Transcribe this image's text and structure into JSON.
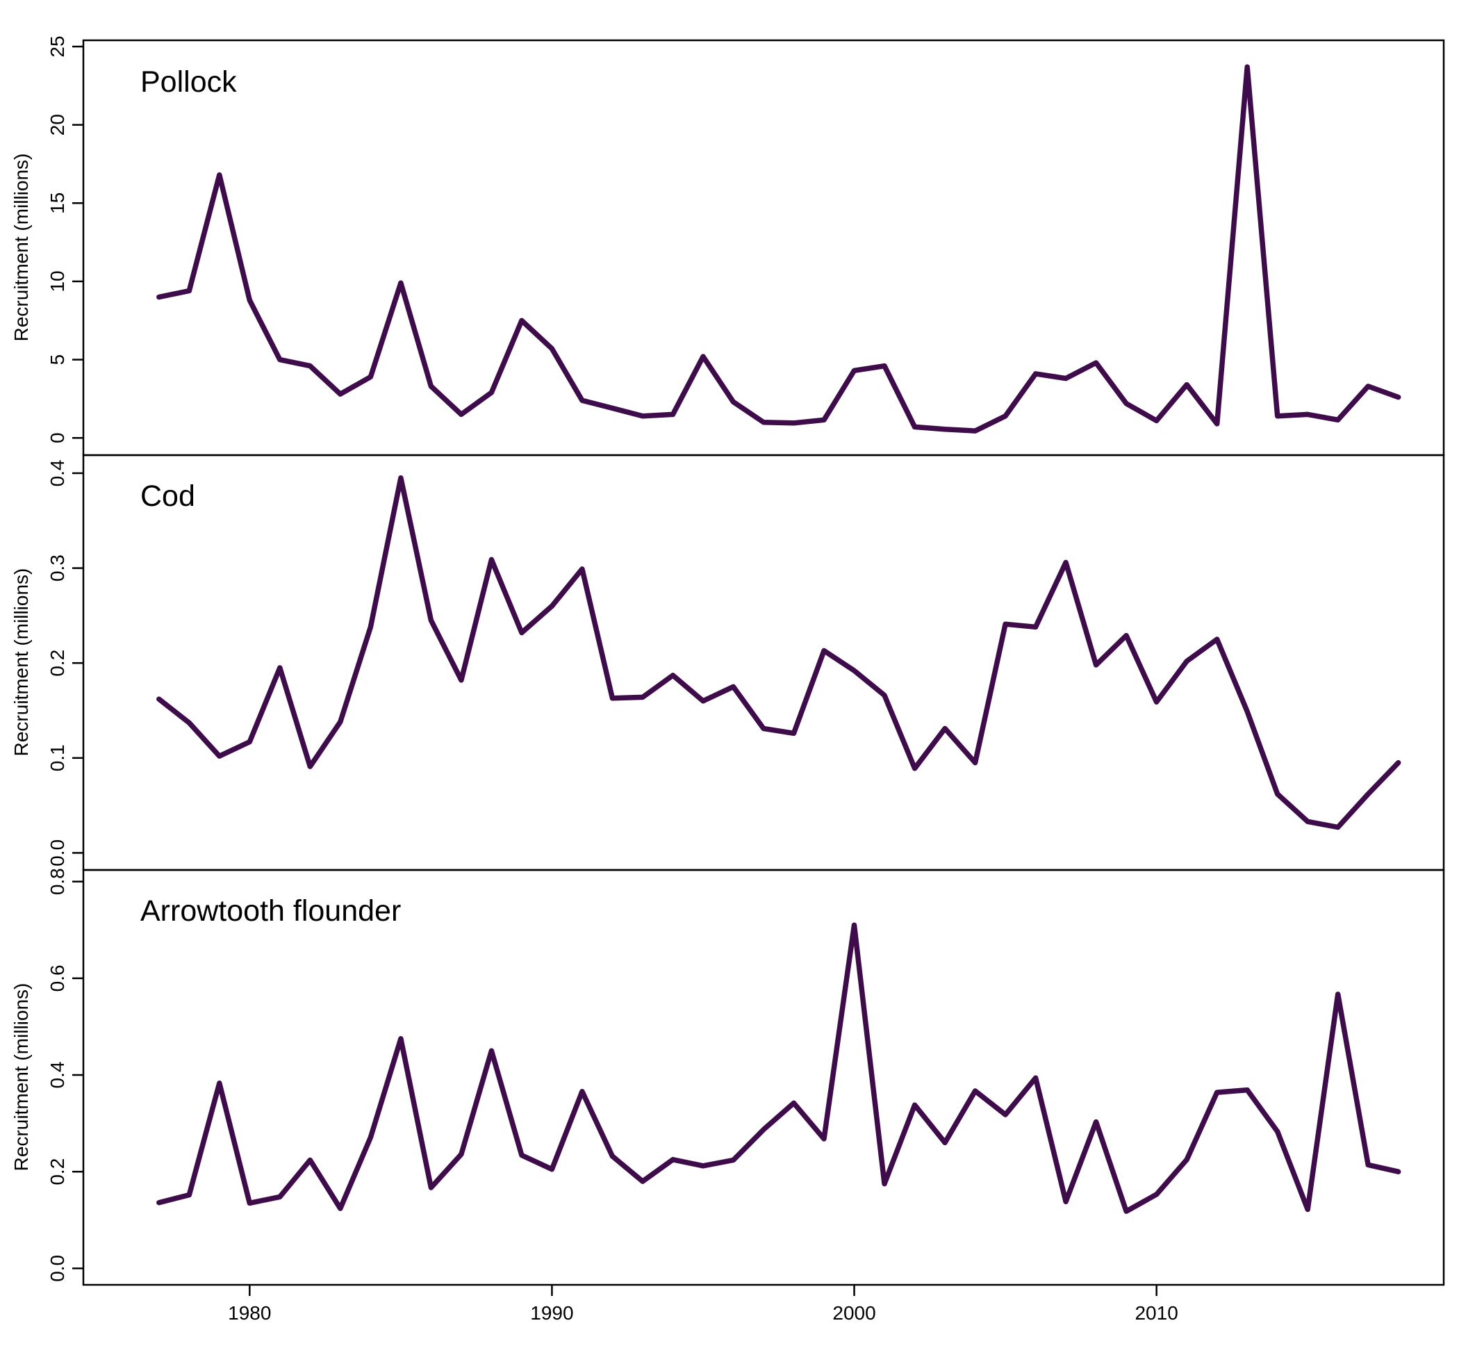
{
  "colors": {
    "series": "#3f0c4b",
    "axes": "#000000",
    "background": "#ffffff"
  },
  "chart_data": [
    {
      "type": "line",
      "title": "Pollock",
      "xlabel": "",
      "ylabel": "Recruitment (millions)",
      "xlim": [
        1974.5,
        2019.5
      ],
      "ylim": [
        -1.1,
        25.4
      ],
      "yticks": [
        0,
        5,
        10,
        15,
        20,
        25
      ],
      "yticklabels": [
        "0",
        "5",
        "10",
        "15",
        "20",
        "25"
      ],
      "grid": false,
      "x": [
        1977,
        1978,
        1979,
        1980,
        1981,
        1982,
        1983,
        1984,
        1985,
        1986,
        1987,
        1988,
        1989,
        1990,
        1991,
        1992,
        1993,
        1994,
        1995,
        1996,
        1997,
        1998,
        1999,
        2000,
        2001,
        2002,
        2003,
        2004,
        2005,
        2006,
        2007,
        2008,
        2009,
        2010,
        2011,
        2012,
        2013,
        2014,
        2015,
        2016,
        2017,
        2018
      ],
      "series": [
        {
          "values": [
            9.0,
            9.4,
            16.8,
            8.8,
            5.0,
            4.6,
            2.8,
            3.9,
            9.9,
            3.3,
            1.5,
            2.9,
            7.5,
            5.7,
            2.4,
            1.9,
            1.4,
            1.5,
            5.2,
            2.3,
            1.0,
            0.95,
            1.15,
            4.3,
            4.6,
            0.7,
            0.55,
            0.45,
            1.4,
            4.1,
            3.8,
            4.8,
            2.2,
            1.1,
            3.4,
            0.9,
            23.7,
            1.4,
            1.5,
            1.15,
            3.3,
            2.6
          ]
        }
      ]
    },
    {
      "type": "line",
      "title": "Cod",
      "xlabel": "",
      "ylabel": "Recruitment (millions)",
      "xlim": [
        1974.5,
        2019.5
      ],
      "ylim": [
        -0.018,
        0.419
      ],
      "yticks": [
        0.0,
        0.1,
        0.2,
        0.3,
        0.4
      ],
      "yticklabels": [
        "0.0",
        "0.1",
        "0.2",
        "0.3",
        "0.4"
      ],
      "grid": false,
      "x": [
        1977,
        1978,
        1979,
        1980,
        1981,
        1982,
        1983,
        1984,
        1985,
        1986,
        1987,
        1988,
        1989,
        1990,
        1991,
        1992,
        1993,
        1994,
        1995,
        1996,
        1997,
        1998,
        1999,
        2000,
        2001,
        2002,
        2003,
        2004,
        2005,
        2006,
        2007,
        2008,
        2009,
        2010,
        2011,
        2012,
        2013,
        2014,
        2015,
        2016,
        2017,
        2018
      ],
      "series": [
        {
          "values": [
            0.162,
            0.137,
            0.102,
            0.117,
            0.195,
            0.091,
            0.138,
            0.238,
            0.395,
            0.245,
            0.182,
            0.309,
            0.232,
            0.26,
            0.299,
            0.163,
            0.164,
            0.187,
            0.16,
            0.175,
            0.131,
            0.126,
            0.213,
            0.192,
            0.166,
            0.089,
            0.131,
            0.095,
            0.241,
            0.238,
            0.306,
            0.198,
            0.229,
            0.159,
            0.202,
            0.225,
            0.149,
            0.062,
            0.033,
            0.027,
            0.062,
            0.095
          ]
        }
      ]
    },
    {
      "type": "line",
      "title": "Arrowtooth flounder",
      "xlabel": "",
      "ylabel": "Recruitment (millions)",
      "xlim": [
        1974.5,
        2019.5
      ],
      "ylim": [
        -0.034,
        0.824
      ],
      "yticks": [
        0.0,
        0.2,
        0.4,
        0.6,
        0.8
      ],
      "yticklabels": [
        "0.0",
        "0.2",
        "0.4",
        "0.6",
        "0.8"
      ],
      "xticks": [
        1980,
        1990,
        2000,
        2010
      ],
      "xticklabels": [
        "1980",
        "1990",
        "2000",
        "2010"
      ],
      "grid": false,
      "x": [
        1977,
        1978,
        1979,
        1980,
        1981,
        1982,
        1983,
        1984,
        1985,
        1986,
        1987,
        1988,
        1989,
        1990,
        1991,
        1992,
        1993,
        1994,
        1995,
        1996,
        1997,
        1998,
        1999,
        2000,
        2001,
        2002,
        2003,
        2004,
        2005,
        2006,
        2007,
        2008,
        2009,
        2010,
        2011,
        2012,
        2013,
        2014,
        2015,
        2016,
        2017,
        2018
      ],
      "series": [
        {
          "values": [
            0.136,
            0.152,
            0.383,
            0.135,
            0.148,
            0.224,
            0.124,
            0.271,
            0.475,
            0.167,
            0.236,
            0.45,
            0.234,
            0.205,
            0.366,
            0.232,
            0.18,
            0.225,
            0.212,
            0.224,
            0.287,
            0.342,
            0.268,
            0.71,
            0.175,
            0.338,
            0.26,
            0.367,
            0.318,
            0.394,
            0.138,
            0.303,
            0.118,
            0.153,
            0.225,
            0.364,
            0.369,
            0.283,
            0.122,
            0.567,
            0.214,
            0.2
          ]
        }
      ]
    }
  ]
}
